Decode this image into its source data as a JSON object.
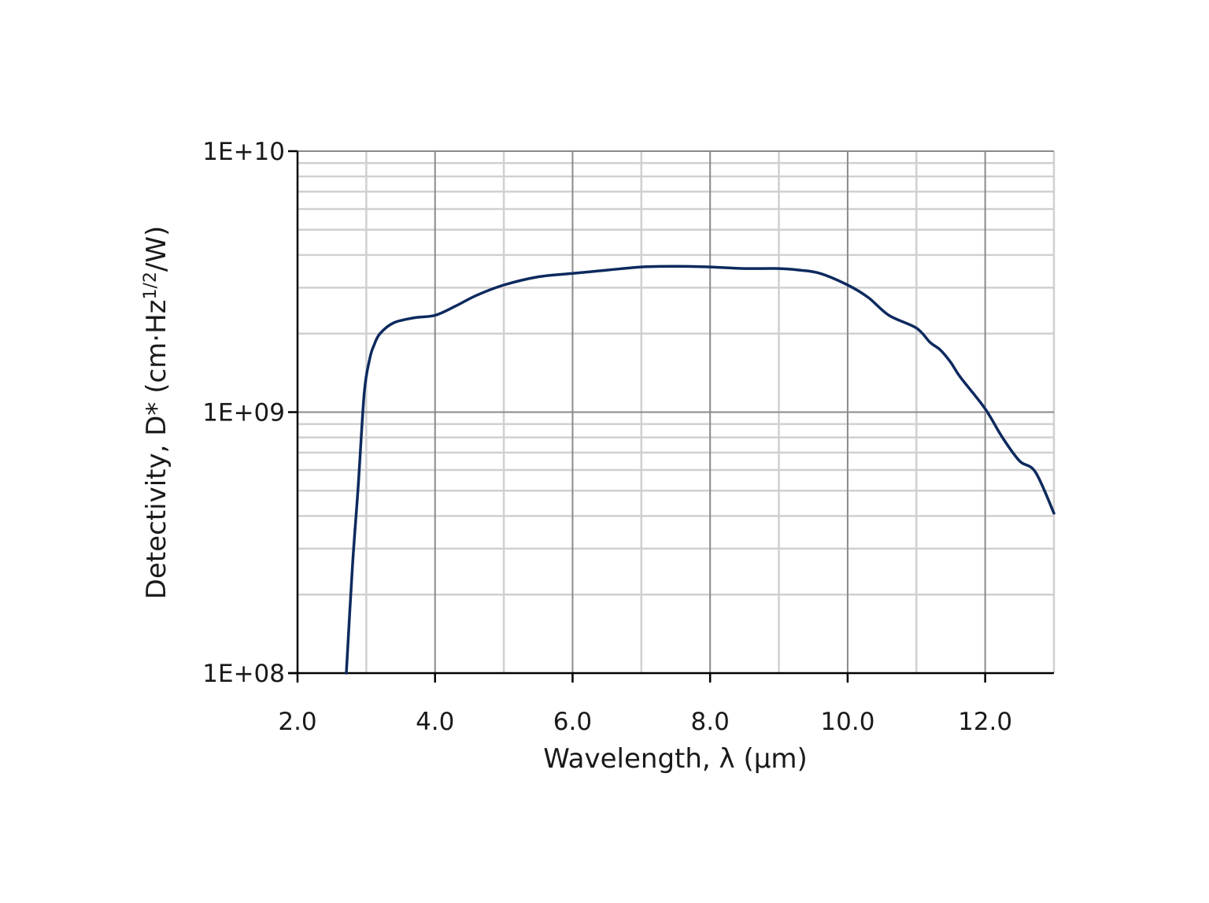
{
  "chart_data": {
    "type": "line",
    "title": "",
    "xlabel": "Wavelength, λ (µm)",
    "ylabel": "Detectivity, D* (cm·Hz1/2/W)",
    "ylabel_parts": {
      "main": "Detectivity, D* (cm·Hz",
      "sup": "1/2",
      "end": "/W)"
    },
    "xlim": [
      2.0,
      13.0
    ],
    "ylim": [
      100000000.0,
      10000000000.0
    ],
    "yscale": "log",
    "grid": true,
    "legend": null,
    "x_ticks": [
      "2.0",
      "4.0",
      "6.0",
      "8.0",
      "10.0",
      "12.0"
    ],
    "y_ticks": [
      "1E+08",
      "1E+09",
      "1E+10"
    ],
    "line_color": "#0d2a5e",
    "series": [
      {
        "name": "D*",
        "x": [
          2.71,
          2.8,
          2.88,
          2.97,
          3.05,
          3.11,
          3.2,
          3.4,
          3.7,
          4.0,
          4.3,
          4.6,
          5.0,
          5.5,
          6.0,
          6.5,
          7.0,
          7.5,
          8.0,
          8.5,
          9.0,
          9.3,
          9.6,
          10.0,
          10.3,
          10.6,
          11.0,
          11.2,
          11.35,
          11.5,
          11.64,
          12.0,
          12.25,
          12.5,
          12.73,
          13.0
        ],
        "values": [
          100000000.0,
          260000000.0,
          510000000.0,
          1180000000.0,
          1600000000.0,
          1800000000.0,
          2000000000.0,
          2200000000.0,
          2300000000.0,
          2350000000.0,
          2550000000.0,
          2800000000.0,
          3070000000.0,
          3300000000.0,
          3400000000.0,
          3500000000.0,
          3600000000.0,
          3620000000.0,
          3600000000.0,
          3550000000.0,
          3550000000.0,
          3500000000.0,
          3400000000.0,
          3070000000.0,
          2750000000.0,
          2350000000.0,
          2100000000.0,
          1850000000.0,
          1730000000.0,
          1550000000.0,
          1360000000.0,
          1030000000.0,
          800000000.0,
          650000000.0,
          590000000.0,
          410000000.0
        ]
      }
    ]
  }
}
